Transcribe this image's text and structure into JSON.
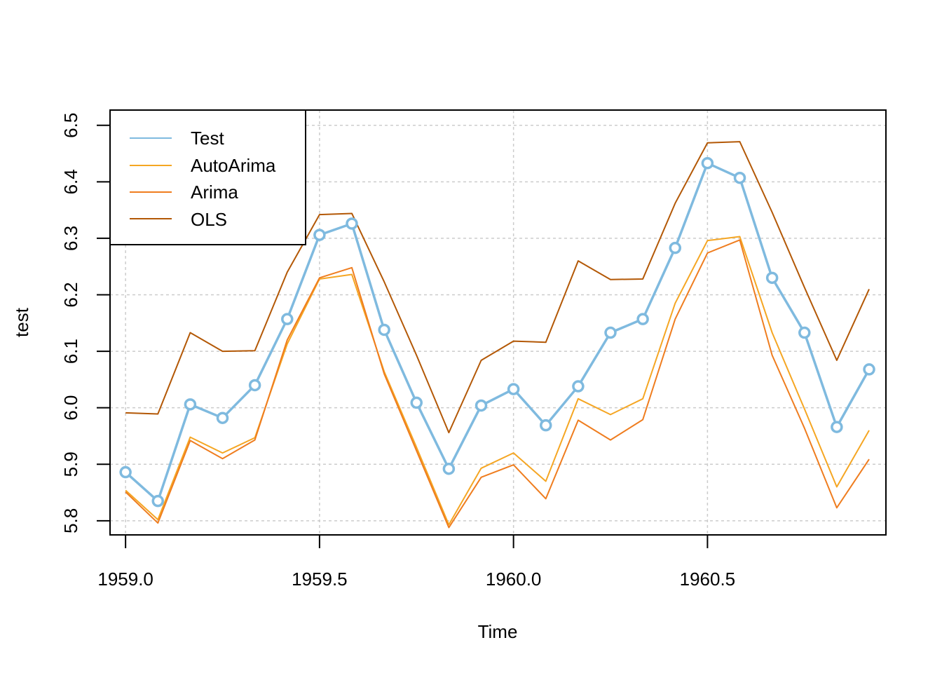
{
  "chart_data": {
    "type": "line",
    "title": "",
    "xlabel": "Time",
    "ylabel": "test",
    "xlim": [
      1958.96,
      1960.96
    ],
    "ylim": [
      5.775,
      6.527
    ],
    "x_ticks": [
      1959.0,
      1959.5,
      1960.0,
      1960.5
    ],
    "x_tick_labels": [
      "1959.0",
      "1959.5",
      "1960.0",
      "1960.5"
    ],
    "y_ticks": [
      5.8,
      5.9,
      6.0,
      6.1,
      6.2,
      6.3,
      6.4,
      6.5
    ],
    "y_tick_labels": [
      "5.8",
      "5.9",
      "6.0",
      "6.1",
      "6.2",
      "6.3",
      "6.4",
      "6.5"
    ],
    "grid": true,
    "legend_position": "top-left",
    "x": [
      1959.0,
      1959.0833,
      1959.1667,
      1959.25,
      1959.3333,
      1959.4167,
      1959.5,
      1959.5833,
      1959.6667,
      1959.75,
      1959.8333,
      1959.9167,
      1960.0,
      1960.0833,
      1960.1667,
      1960.25,
      1960.3333,
      1960.4167,
      1960.5,
      1960.5833,
      1960.6667,
      1960.75,
      1960.8333,
      1960.9167
    ],
    "series": [
      {
        "name": "Test",
        "color": "#7fbadf",
        "markers": true,
        "values": [
          5.886,
          5.835,
          6.006,
          5.982,
          6.04,
          6.157,
          6.306,
          6.326,
          6.138,
          6.009,
          5.892,
          6.004,
          6.033,
          5.969,
          6.038,
          6.133,
          6.157,
          6.283,
          6.433,
          6.407,
          6.23,
          6.133,
          5.966,
          6.068
        ]
      },
      {
        "name": "AutoArima",
        "color": "#f5a623",
        "markers": false,
        "values": [
          5.854,
          5.802,
          5.948,
          5.92,
          5.947,
          6.113,
          6.228,
          6.236,
          6.064,
          5.93,
          5.793,
          5.893,
          5.92,
          5.87,
          6.016,
          5.988,
          6.016,
          6.185,
          6.296,
          6.303,
          6.133,
          5.998,
          5.86,
          5.96
        ]
      },
      {
        "name": "Arima",
        "color": "#ef7d1f",
        "markers": false,
        "values": [
          5.851,
          5.796,
          5.942,
          5.91,
          5.943,
          6.12,
          6.23,
          6.248,
          6.06,
          5.924,
          5.788,
          5.877,
          5.899,
          5.839,
          5.978,
          5.943,
          5.979,
          6.157,
          6.274,
          6.297,
          6.093,
          5.964,
          5.823,
          5.909
        ]
      },
      {
        "name": "OLS",
        "color": "#b35806",
        "markers": false,
        "values": [
          5.991,
          5.989,
          6.133,
          6.1,
          6.101,
          6.24,
          6.342,
          6.344,
          6.223,
          6.093,
          5.956,
          6.084,
          6.118,
          6.116,
          6.26,
          6.227,
          6.228,
          6.362,
          6.469,
          6.471,
          6.346,
          6.213,
          6.084,
          6.21
        ]
      }
    ]
  }
}
